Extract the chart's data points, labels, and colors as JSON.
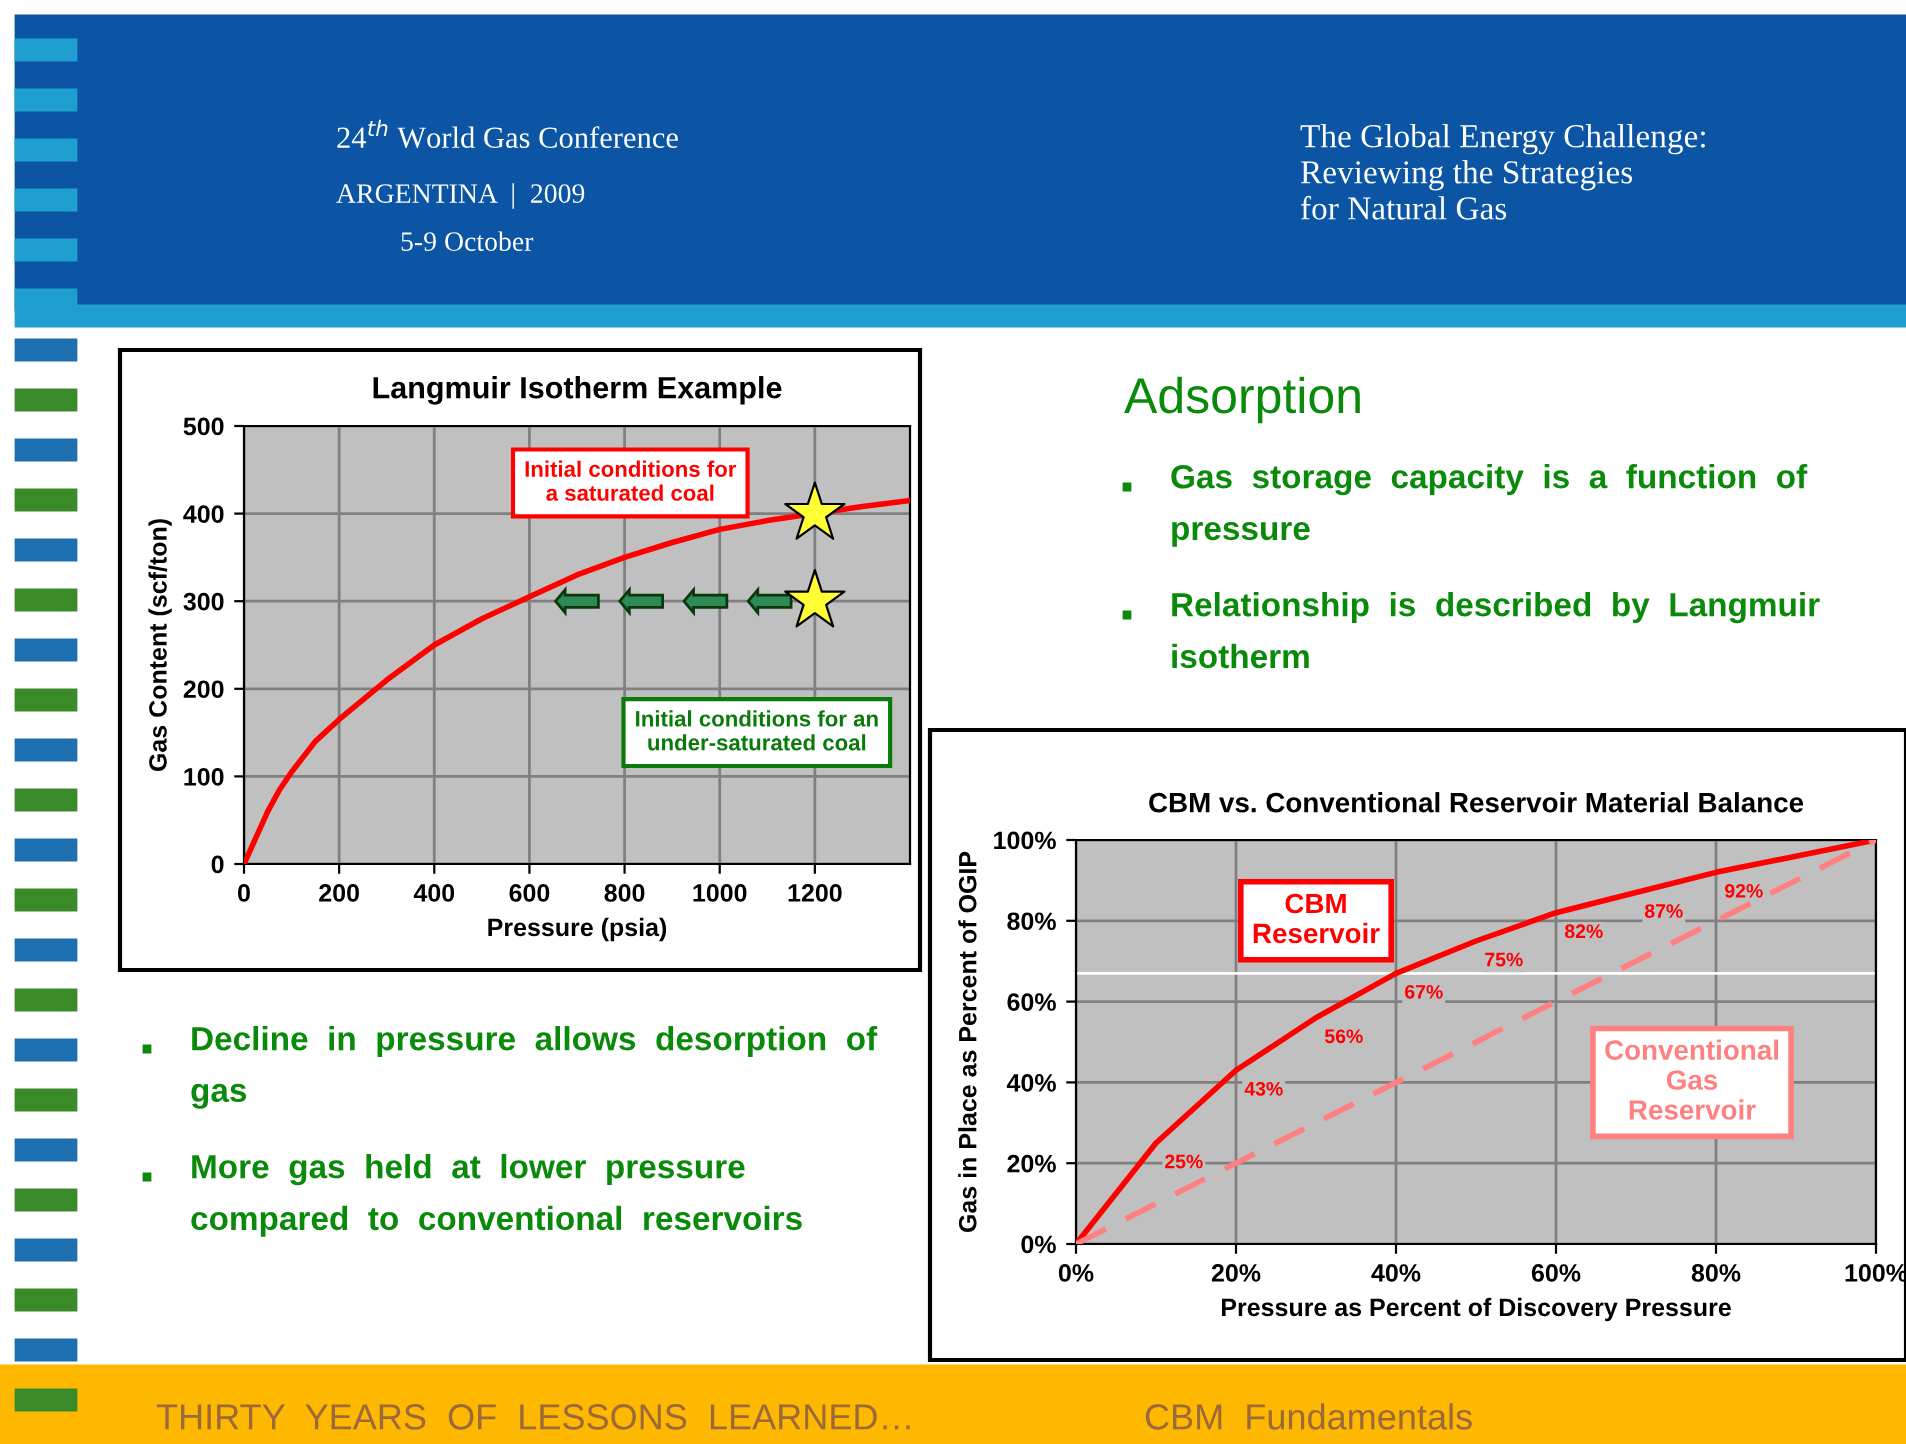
{
  "chart_data": [
    {
      "type": "other",
      "annotations": [
        "24$^{th}$ World Gas Conference",
        "ARGENTINA  |  2009",
        "5-9 October",
        "The Global Energy Challenge:\nReviewing the Strategies\nfor Natural Gas"
      ]
    },
    {
      "type": "line",
      "title": "Langmuir Isotherm Example",
      "xlabel": "Pressure (psia)",
      "ylabel": "Gas Content (scf/ton)",
      "xlim": [
        0,
        1400
      ],
      "xticks": [
        0,
        200,
        400,
        600,
        800,
        1000,
        1200
      ],
      "ylim": [
        0,
        500
      ],
      "yticks": [
        0,
        100,
        200,
        300,
        400,
        500
      ],
      "grid": true,
      "legend": false,
      "series": [
        {
          "color": "#ff0000",
          "x": [
            0,
            25,
            50,
            75,
            100,
            150,
            200,
            300,
            400,
            500,
            600,
            700,
            800,
            900,
            1000,
            1100,
            1300,
            1400
          ],
          "values": [
            0,
            30,
            60,
            85,
            105,
            140,
            165,
            210,
            250,
            280,
            305,
            330,
            350,
            367,
            382,
            392,
            408,
            415
          ]
        },
        {
          "type": "scatter",
          "marker": "star",
          "color": "#ffff33",
          "x": [
            1200,
            1200
          ],
          "values": [
            400,
            300
          ]
        }
      ],
      "annotations": [
        "Initial conditions for\na saturated coal",
        "Initial conditions for an\nunder-saturated coal"
      ]
    },
    {
      "type": "other",
      "title": "Adsorption",
      "annotations": [
        "Gas  storage  capacity  is  a  function  of\npressure",
        "Relationship  is  described  by  Langmuir\nisotherm"
      ]
    },
    {
      "type": "line",
      "title": "CBM vs. Conventional Reservoir Material Balance",
      "xlabel": "Pressure as Percent of Discovery Pressure",
      "ylabel": "Gas in Place as Percent of OGIP",
      "xlim": [
        0,
        100
      ],
      "xticks": [
        {
          "value": 0,
          "label": "0%"
        },
        {
          "value": 20,
          "label": "20%"
        },
        {
          "value": 40,
          "label": "40%"
        },
        {
          "value": 60,
          "label": "60%"
        },
        {
          "value": 80,
          "label": "80%"
        },
        {
          "value": 100,
          "label": "100%"
        }
      ],
      "ylim": [
        0,
        100
      ],
      "yticks": [
        {
          "value": 0,
          "label": "0%"
        },
        {
          "value": 20,
          "label": "20%"
        },
        {
          "value": 40,
          "label": "40%"
        },
        {
          "value": 60,
          "label": "60%"
        },
        {
          "value": 80,
          "label": "80%"
        },
        {
          "value": 100,
          "label": "100%"
        }
      ],
      "grid": true,
      "legend": false,
      "ref_lines": [
        {
          "axis": "y",
          "value": 67,
          "color": "#ffffff"
        }
      ],
      "series": [
        {
          "name": "CBM\nReservoir",
          "color": "#ff0000",
          "line_style": "solid",
          "x": [
            0,
            10,
            20,
            30,
            40,
            50,
            60,
            70,
            80,
            100
          ],
          "values": [
            0,
            25,
            43,
            56,
            67,
            75,
            82,
            87,
            92,
            100
          ],
          "value_labels": [
            null,
            "25%",
            "43%",
            "56%",
            "67%",
            "75%",
            "82%",
            "87%",
            "92%",
            null
          ]
        },
        {
          "name": "Conventional\nGas\nReservoir",
          "color": "#ff8080",
          "line_style": "dashed",
          "x": [
            0,
            100
          ],
          "values": [
            0,
            100
          ]
        }
      ]
    },
    {
      "type": "other",
      "annotations": [
        "Decline  in  pressure  allows  desorption  of\ngas",
        "More  gas  held  at  lower  pressure\ncompared  to  conventional  reservoirs"
      ]
    },
    {
      "type": "other",
      "annotations": [
        "THIRTY  YEARS  OF  LESSONS  LEARNED…",
        "CBM  Fundamentals"
      ]
    }
  ]
}
